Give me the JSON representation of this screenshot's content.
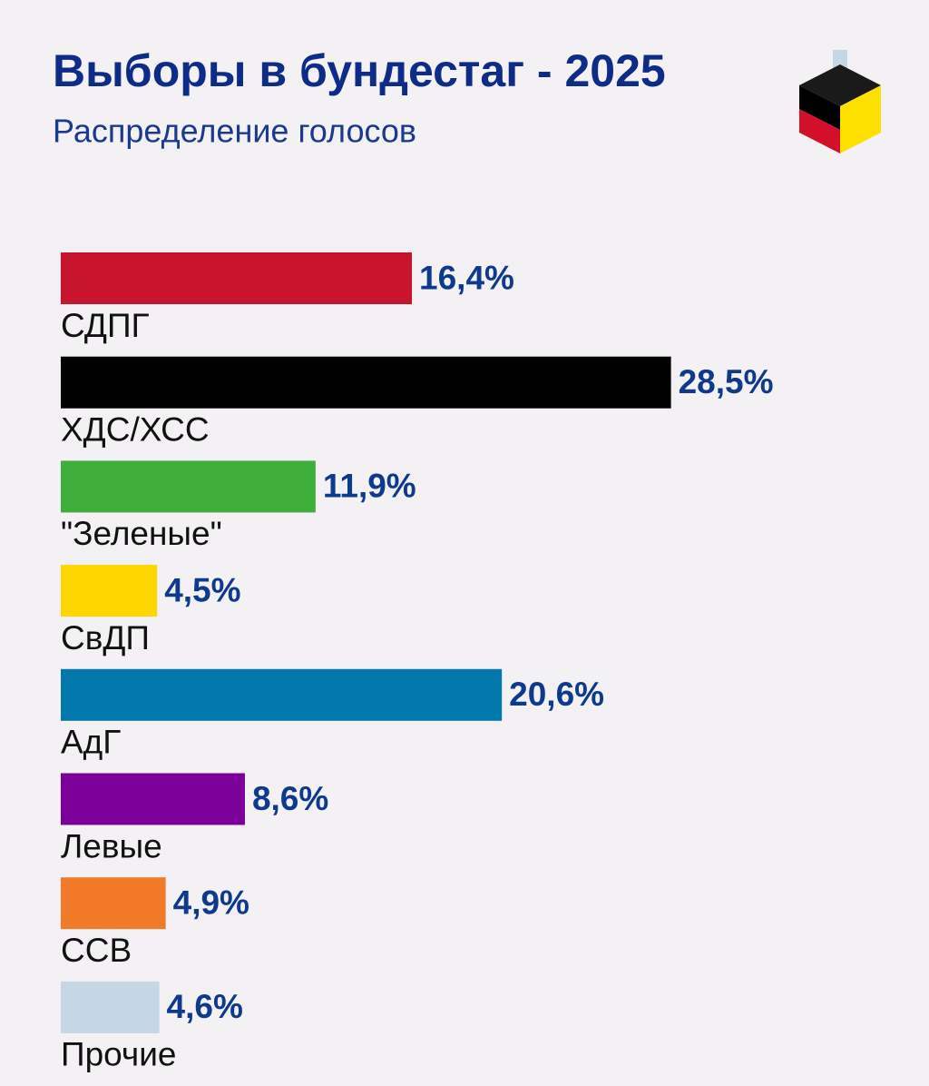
{
  "chart_data": {
    "type": "bar",
    "orientation": "horizontal",
    "title": "Выборы в бундестаг - 2025",
    "subtitle": "Распределение голосов",
    "categories": [
      "СДПГ",
      "ХДС/ХСС",
      "\"Зеленые\"",
      "СвДП",
      "АдГ",
      "Левые",
      "ССВ",
      "Прочие"
    ],
    "values": [
      16.4,
      28.5,
      11.9,
      4.5,
      20.6,
      8.6,
      4.9,
      4.6
    ],
    "value_labels": [
      "16,4%",
      "28,5%",
      "11,9%",
      "4,5%",
      "20,6%",
      "8,6%",
      "4,9%",
      "4,6%"
    ],
    "colors": [
      "#c8152d",
      "#000000",
      "#3fae3a",
      "#fdd500",
      "#0078ab",
      "#7b0099",
      "#f07a28",
      "#c5d6e4"
    ]
  }
}
